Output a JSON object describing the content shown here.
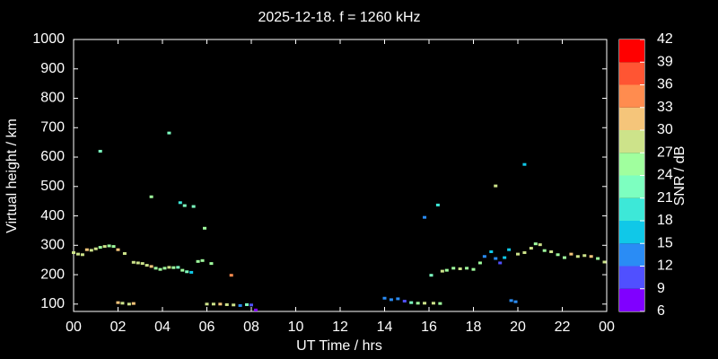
{
  "chart_data": {
    "type": "scatter",
    "title": "2025-12-18. f = 1260 kHz",
    "x_label": "UT Time / hrs",
    "y_label": "Virtual height / km",
    "colorbar_label": "SNR / dB",
    "x": [
      0.0,
      0.2,
      0.4,
      0.6,
      0.8,
      1.0,
      1.2,
      1.4,
      1.6,
      1.8,
      2.0,
      2.3,
      2.7,
      2.9,
      3.1,
      3.3,
      3.5,
      3.7,
      3.9,
      4.1,
      4.3,
      4.5,
      4.7,
      4.9,
      5.1,
      5.3,
      5.6,
      5.8,
      6.2,
      1.2,
      3.5,
      4.3,
      4.8,
      5.0,
      5.4,
      5.9,
      7.1,
      2.0,
      2.2,
      2.5,
      2.7,
      6.0,
      6.3,
      6.6,
      6.9,
      7.2,
      7.5,
      7.8,
      8.0,
      8.2,
      14.0,
      14.3,
      14.6,
      14.9,
      15.2,
      15.5,
      15.8,
      16.2,
      16.5,
      15.8,
      16.4,
      16.1,
      16.6,
      16.8,
      17.1,
      17.4,
      17.7,
      18.0,
      18.3,
      18.5,
      18.8,
      19.0,
      19.2,
      19.4,
      19.6,
      19.7,
      19.9,
      19.0,
      20.3,
      20.0,
      20.3,
      20.6,
      20.8,
      21.0,
      21.2,
      21.5,
      21.8,
      22.1,
      22.4,
      22.7,
      23.0,
      23.3,
      23.6,
      23.9
    ],
    "y": [
      275,
      270,
      268,
      285,
      283,
      288,
      293,
      296,
      298,
      296,
      285,
      272,
      242,
      240,
      238,
      232,
      228,
      222,
      218,
      222,
      225,
      224,
      225,
      215,
      210,
      208,
      245,
      248,
      238,
      620,
      465,
      682,
      445,
      435,
      432,
      358,
      198,
      105,
      103,
      100,
      102,
      100,
      100,
      100,
      98,
      97,
      95,
      98,
      97,
      80,
      120,
      115,
      118,
      110,
      105,
      103,
      103,
      103,
      102,
      395,
      437,
      198,
      212,
      215,
      222,
      220,
      222,
      218,
      240,
      262,
      278,
      255,
      240,
      258,
      285,
      112,
      108,
      502,
      575,
      270,
      275,
      290,
      305,
      302,
      282,
      278,
      268,
      258,
      270,
      262,
      265,
      262,
      255,
      243
    ],
    "snr": [
      28,
      27,
      27,
      31,
      29,
      27,
      25,
      27,
      25,
      24,
      31,
      27,
      28,
      29,
      27,
      28,
      30,
      26,
      25,
      24,
      28,
      24,
      23,
      25,
      22,
      17,
      26,
      24,
      24,
      21,
      25,
      22,
      20,
      21,
      23,
      26,
      33,
      30,
      28,
      27,
      30,
      28,
      27,
      30,
      27,
      28,
      14,
      22,
      10,
      8,
      12,
      12,
      13,
      11,
      22,
      25,
      28,
      27,
      24,
      12,
      18,
      22,
      28,
      25,
      24,
      27,
      25,
      24,
      26,
      13,
      15,
      13,
      11,
      17,
      15,
      14,
      12,
      27,
      15,
      27,
      28,
      27,
      24,
      27,
      25,
      27,
      26,
      25,
      32,
      27,
      28,
      30,
      26,
      27
    ],
    "xlim": [
      0,
      24
    ],
    "xticks": [
      {
        "value": 0,
        "label": "00"
      },
      {
        "value": 2,
        "label": "02"
      },
      {
        "value": 4,
        "label": "04"
      },
      {
        "value": 6,
        "label": "06"
      },
      {
        "value": 8,
        "label": "08"
      },
      10,
      12,
      14,
      16,
      18,
      20,
      22,
      {
        "value": 24,
        "label": "00"
      }
    ],
    "ylim": [
      75,
      1000
    ],
    "yticks": [
      100,
      200,
      300,
      400,
      500,
      600,
      700,
      800,
      900,
      1000
    ],
    "clim": [
      6,
      42
    ],
    "cticks": [
      6,
      9,
      12,
      15,
      18,
      21,
      24,
      27,
      30,
      33,
      36,
      39,
      42
    ],
    "colorscale": [
      "#8000ff",
      "#5050ff",
      "#2a8cf5",
      "#10c8e8",
      "#3de8d8",
      "#7dffc0",
      "#a0ff9e",
      "#cde38a",
      "#f5c57a",
      "#ff8c4f",
      "#ff5533",
      "#ff0000"
    ]
  }
}
